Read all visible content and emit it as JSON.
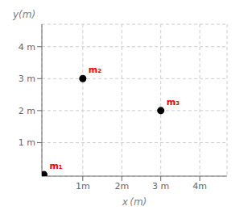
{
  "chart_data": {
    "type": "scatter",
    "x": [
      0,
      1,
      3
    ],
    "y": [
      0,
      3,
      2
    ],
    "color": "#000000",
    "annotations": [
      {
        "text": "m₁",
        "x": 0,
        "y": 0,
        "color": "#ff0000"
      },
      {
        "text": "m₂",
        "x": 1,
        "y": 3,
        "color": "#ff0000"
      },
      {
        "text": "m₃",
        "x": 3,
        "y": 2,
        "color": "#ff0000"
      }
    ],
    "xlim": [
      -0.05,
      4.7
    ],
    "ylim": [
      -0.05,
      4.7
    ],
    "xticks": [
      {
        "value": 1,
        "label": "1m"
      },
      {
        "value": 2,
        "label": "2m"
      },
      {
        "value": 3,
        "label": "3 m"
      },
      {
        "value": 4,
        "label": "4m"
      }
    ],
    "yticks": [
      {
        "value": 1,
        "label": "1 m"
      },
      {
        "value": 2,
        "label": "2 m"
      },
      {
        "value": 3,
        "label": "3 m"
      },
      {
        "value": 4,
        "label": "4 m"
      }
    ],
    "xlabel": "x (m)",
    "ylabel": "y(m)",
    "grid": true
  }
}
